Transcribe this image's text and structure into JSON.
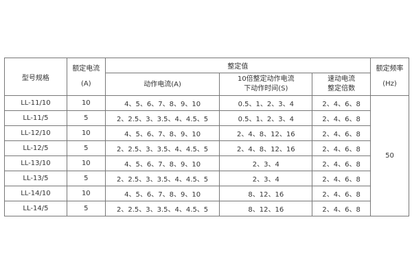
{
  "headers": {
    "model": "型号规格",
    "rated_current": [
      "额定电流",
      "(A)"
    ],
    "setting_value": "整定值",
    "action_current": "动作电流(A)",
    "action_time": [
      "10倍整定动作电流",
      "下动作时间(S)"
    ],
    "quick_multiple": [
      "速动电流",
      "整定倍数"
    ],
    "rated_freq": [
      "额定频率",
      "(Hz)"
    ]
  },
  "rows": [
    {
      "model": "LL-11/10",
      "rated": "10",
      "current": "4、5、6、7、8、9、10",
      "time": "0.5、1、2、3、4",
      "multiple": "2、4、6、8"
    },
    {
      "model": "LL-11/5",
      "rated": "5",
      "current": "2、2.5、3、3.5、4、4.5、5",
      "time": "0.5、1、2、3、4",
      "multiple": "2、4、6、8"
    },
    {
      "model": "LL-12/10",
      "rated": "10",
      "current": "4、5、6、7、8、9、10",
      "time": "2、4、8、12、16",
      "multiple": "2、4、6、8"
    },
    {
      "model": "LL-12/5",
      "rated": "5",
      "current": "2、2.5、3、3.5、4、4.5、5",
      "time": "2、4、8、12、16",
      "multiple": "2、4、6、8"
    },
    {
      "model": "LL-13/10",
      "rated": "10",
      "current": "4、5、6、7、8、9、10",
      "time": "2、3、4",
      "multiple": "2、4、6、8"
    },
    {
      "model": "LL-13/5",
      "rated": "5",
      "current": "2、2.5、3、3.5、4、4.5、5",
      "time": "2、3、4",
      "multiple": "2、4、6、8"
    },
    {
      "model": "LL-14/10",
      "rated": "10",
      "current": "4、5、6、7、8、9、10",
      "time": "8、12、16",
      "multiple": "2、4、6、8"
    },
    {
      "model": "LL-14/5",
      "rated": "5",
      "current": "2、2.5、3、3.5、4、4.5、5",
      "time": "8、12、16",
      "multiple": "2、4、6、8"
    }
  ],
  "frequency": "50"
}
